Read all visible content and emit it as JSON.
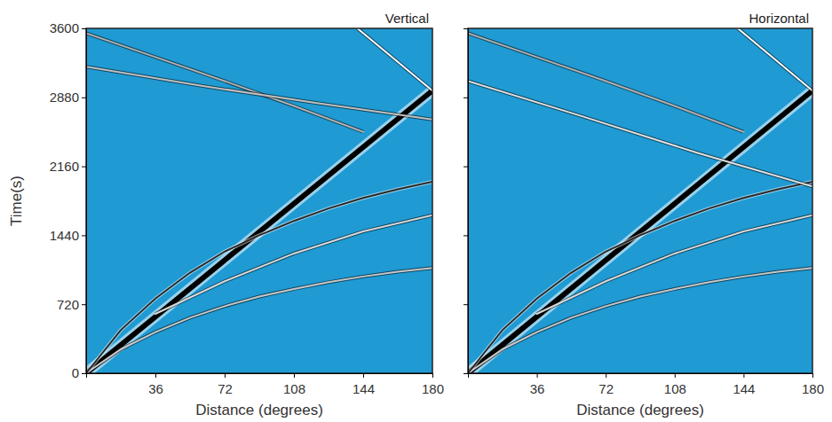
{
  "chart_data": [
    {
      "type": "line",
      "title": "Vertical",
      "x_label": "Distance (degrees)",
      "y_label": "Time(s)",
      "color": "#1f9ad3",
      "xlim": [
        0,
        180
      ],
      "xticks": [
        36,
        72,
        108,
        144,
        180
      ],
      "ylim": [
        0,
        3600
      ],
      "yticks": [
        0,
        720,
        1440,
        2160,
        2880,
        3600
      ],
      "tick_labels": true,
      "series": [
        {
          "color": "#000000",
          "x": [
            0,
            180
          ],
          "values": [
            0,
            2950
          ]
        },
        {
          "color": "#ffffff",
          "x": [
            141,
            180
          ],
          "values": [
            3600,
            2950
          ]
        },
        {
          "color": "#c8c8c8",
          "x": [
            0,
            18,
            36,
            54,
            72,
            90,
            108,
            126,
            144,
            162,
            180
          ],
          "values": [
            0,
            250,
            430,
            580,
            700,
            800,
            880,
            950,
            1010,
            1060,
            1100
          ]
        },
        {
          "color": "#2a2a2a",
          "x": [
            0,
            18,
            36,
            54,
            72,
            90,
            108,
            126,
            144,
            162,
            180
          ],
          "values": [
            0,
            450,
            780,
            1050,
            1270,
            1440,
            1590,
            1720,
            1830,
            1920,
            2000
          ]
        },
        {
          "color": "#d8d8d8",
          "x": [
            36,
            72,
            108,
            144,
            180
          ],
          "values": [
            620,
            960,
            1250,
            1480,
            1650
          ]
        },
        {
          "color": "#b0b0b0",
          "x": [
            0,
            36,
            72,
            108,
            144
          ],
          "values": [
            3550,
            3300,
            3050,
            2790,
            2520
          ]
        },
        {
          "color": "#c0c0c0",
          "x": [
            0,
            60,
            120,
            180
          ],
          "values": [
            3200,
            3000,
            2820,
            2650
          ]
        }
      ]
    },
    {
      "type": "line",
      "title": "Horizontal",
      "x_label": "Distance (degrees)",
      "color": "#1f9ad3",
      "xlim": [
        0,
        180
      ],
      "xticks": [
        36,
        72,
        108,
        144,
        180
      ],
      "ylim": [
        0,
        3600
      ],
      "yticks": [
        0,
        720,
        1440,
        2160,
        2880,
        3600
      ],
      "tick_labels": "x",
      "series": [
        {
          "color": "#000000",
          "x": [
            0,
            180
          ],
          "values": [
            0,
            2950
          ]
        },
        {
          "color": "#ffffff",
          "x": [
            141,
            180
          ],
          "values": [
            3600,
            2950
          ]
        },
        {
          "color": "#c8c8c8",
          "x": [
            0,
            18,
            36,
            54,
            72,
            90,
            108,
            126,
            144,
            162,
            180
          ],
          "values": [
            0,
            250,
            430,
            580,
            700,
            800,
            880,
            950,
            1010,
            1060,
            1100
          ]
        },
        {
          "color": "#2a2a2a",
          "x": [
            0,
            18,
            36,
            54,
            72,
            90,
            108,
            126,
            144,
            162,
            180
          ],
          "values": [
            0,
            450,
            780,
            1050,
            1270,
            1440,
            1590,
            1720,
            1830,
            1920,
            2000
          ]
        },
        {
          "color": "#d8d8d8",
          "x": [
            36,
            72,
            108,
            144,
            180
          ],
          "values": [
            620,
            960,
            1250,
            1480,
            1650
          ]
        },
        {
          "color": "#b0b0b0",
          "x": [
            0,
            36,
            72,
            108,
            144
          ],
          "values": [
            3550,
            3300,
            3050,
            2790,
            2520
          ]
        },
        {
          "color": "#e0e0e0",
          "x": [
            0,
            60,
            120,
            180
          ],
          "values": [
            3050,
            2680,
            2300,
            1950
          ]
        }
      ]
    }
  ]
}
